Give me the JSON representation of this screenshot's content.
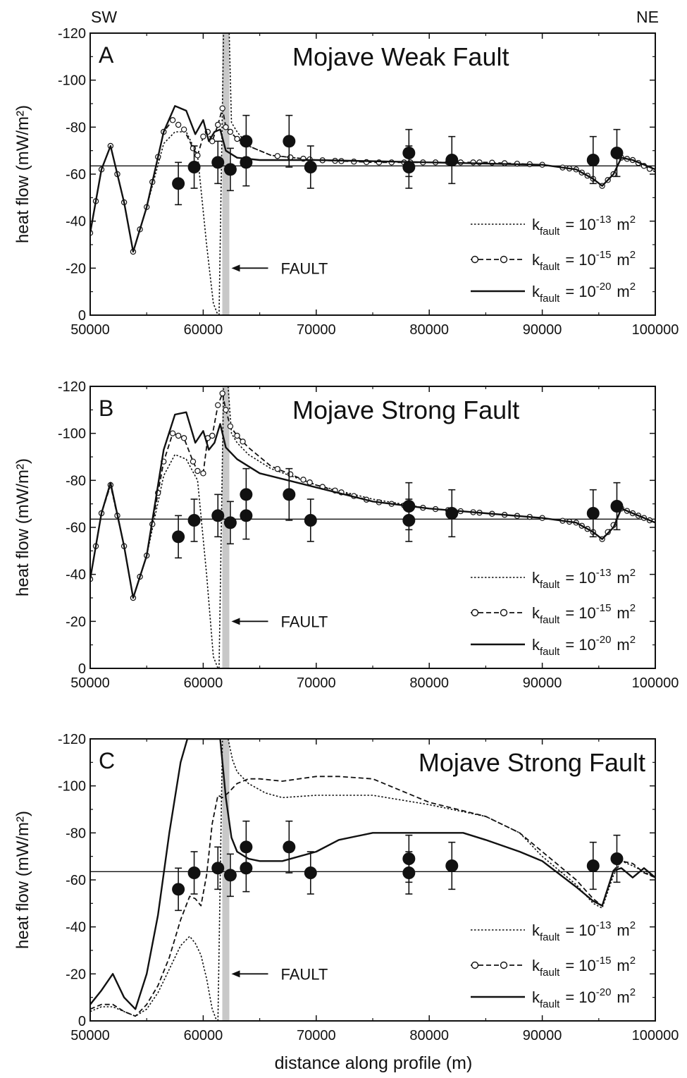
{
  "figure": {
    "left_label": "SW",
    "right_label": "NE",
    "xlabel": "distance along profile (m)"
  },
  "chart_data": [
    {
      "type": "line",
      "panel": "A",
      "title": "Mojave Weak Fault",
      "ylabel": "heat flow (mW/m²)",
      "xlim": [
        50000,
        100000
      ],
      "ylim": [
        0,
        -120
      ],
      "xticks": [
        "50000",
        "60000",
        "70000",
        "80000",
        "90000",
        "100000"
      ],
      "yticks": [
        "0",
        "-20",
        "-40",
        "-60",
        "-80",
        "-100",
        "-120"
      ],
      "fault_label": "FAULT",
      "fault_x": 62000,
      "reference_line": -63.5,
      "legend": [
        "k_fault = 10^-13 m^2",
        "k_fault = 10^-15 m^2",
        "k_fault = 10^-20 m^2"
      ],
      "series": [
        {
          "name": "k_fault = 10^-13 m^2",
          "style": "dotted",
          "x": [
            50000,
            51000,
            51800,
            53000,
            53800,
            55000,
            56500,
            57500,
            58500,
            59500,
            60300,
            60900,
            61300
          ],
          "y": [
            -35,
            -62,
            -72,
            -48,
            -27,
            -46,
            -73,
            -78,
            -78,
            -68,
            -30,
            -5,
            0
          ]
        },
        {
          "name": "k_fault = 10^-13 m^2 (fault zone)",
          "style": "dotted",
          "x": [
            61400,
            61600,
            61800
          ],
          "y": [
            0,
            -60,
            -120
          ]
        },
        {
          "name": "k_fault = 10^-13 m^2 (NE)",
          "style": "dotted",
          "x": [
            62300,
            62500,
            63000,
            64000,
            66000,
            70000,
            80000,
            90000,
            93000,
            94500,
            95300,
            96300,
            97000,
            98000,
            100000
          ],
          "y": [
            -120,
            -82,
            -78,
            -72,
            -68,
            -66,
            -65,
            -64,
            -62,
            -58,
            -55,
            -60,
            -67,
            -66,
            -61
          ]
        },
        {
          "name": "k_fault = 10^-15 m^2",
          "style": "dashed",
          "x": [
            50000,
            51000,
            51800,
            53000,
            53800,
            55000,
            56500,
            57300,
            58300,
            59100,
            59500,
            60000,
            60400,
            60800,
            61300,
            61700,
            62000,
            62400,
            63000,
            64000,
            66000,
            70000,
            75000,
            80000,
            85000,
            90000,
            93000,
            94500,
            95300,
            96300,
            97000,
            98000,
            100000
          ],
          "y": [
            -35,
            -62,
            -72,
            -48,
            -27,
            -46,
            -78,
            -83,
            -79,
            -71,
            -68,
            -76,
            -78,
            -74,
            -81,
            -88,
            -80,
            -78,
            -75,
            -72,
            -68,
            -66,
            -65,
            -65,
            -65,
            -64,
            -62,
            -58,
            -55,
            -60,
            -67,
            -66,
            -61
          ],
          "markers": true
        },
        {
          "name": "k_fault = 10^-20 m^2",
          "style": "solid",
          "x": [
            50000,
            51000,
            51800,
            53000,
            53800,
            55000,
            56500,
            57500,
            58500,
            59300,
            60000,
            60500,
            61000,
            61500,
            62000,
            63000,
            65000,
            70000,
            80000,
            90000,
            93000,
            94500,
            95300,
            96300,
            97000,
            98000,
            100000
          ],
          "y": [
            -35,
            -62,
            -72,
            -48,
            -27,
            -46,
            -78,
            -89,
            -87,
            -77,
            -83,
            -74,
            -78,
            -79,
            -70,
            -67,
            -66,
            -66,
            -65,
            -64,
            -62,
            -58,
            -55,
            -60,
            -67,
            -66,
            -62
          ]
        }
      ],
      "measurements": [
        {
          "x": 57800,
          "y": -56,
          "err": 9
        },
        {
          "x": 59200,
          "y": -63,
          "err": 9
        },
        {
          "x": 61300,
          "y": -65,
          "err": 9
        },
        {
          "x": 62400,
          "y": -62,
          "err": 9
        },
        {
          "x": 63800,
          "y": -65,
          "err": 10
        },
        {
          "x": 63800,
          "y": -74,
          "err": 11
        },
        {
          "x": 67600,
          "y": -74,
          "err": 11
        },
        {
          "x": 69500,
          "y": -63,
          "err": 9
        },
        {
          "x": 78200,
          "y": -69,
          "err": 10
        },
        {
          "x": 78200,
          "y": -63,
          "err": 9
        },
        {
          "x": 82000,
          "y": -66,
          "err": 10
        },
        {
          "x": 94500,
          "y": -66,
          "err": 10
        },
        {
          "x": 96600,
          "y": -69,
          "err": 10
        }
      ]
    },
    {
      "type": "line",
      "panel": "B",
      "title": "Mojave Strong Fault",
      "ylabel": "heat flow (mW/m²)",
      "xlim": [
        50000,
        100000
      ],
      "ylim": [
        0,
        -120
      ],
      "xticks": [
        "50000",
        "60000",
        "70000",
        "80000",
        "90000",
        "100000"
      ],
      "yticks": [
        "0",
        "-20",
        "-40",
        "-60",
        "-80",
        "-100",
        "-120"
      ],
      "fault_label": "FAULT",
      "fault_x": 62000,
      "reference_line": -63.5,
      "legend": [
        "k_fault = 10^-13 m^2",
        "k_fault = 10^-15 m^2",
        "k_fault = 10^-20 m^2"
      ],
      "series": [
        {
          "name": "k_fault = 10^-13 m^2",
          "style": "dotted",
          "x": [
            50000,
            51000,
            51800,
            53000,
            53800,
            55000,
            56500,
            57500,
            58500,
            59500,
            60300,
            60900,
            61300
          ],
          "y": [
            -38,
            -66,
            -78,
            -52,
            -30,
            -48,
            -82,
            -91,
            -89,
            -80,
            -40,
            -5,
            0
          ]
        },
        {
          "name": "k_fault = 10^-13 m^2 (fault zone)",
          "style": "dotted",
          "x": [
            61400,
            61600,
            61800
          ],
          "y": [
            0,
            -60,
            -120
          ]
        },
        {
          "name": "k_fault = 10^-13 m^2 (NE)",
          "style": "dotted",
          "x": [
            62200,
            62500,
            63000,
            64000,
            66000,
            70000,
            75000,
            80000,
            85000,
            90000,
            93000,
            94500,
            95300,
            96300,
            97000,
            98000,
            100000
          ],
          "y": [
            -120,
            -100,
            -96,
            -91,
            -85,
            -78,
            -72,
            -68,
            -66,
            -64,
            -62,
            -58,
            -55,
            -60,
            -68,
            -66,
            -62
          ]
        },
        {
          "name": "k_fault = 10^-15 m^2",
          "style": "dashed",
          "x": [
            50000,
            51000,
            51800,
            53000,
            53800,
            55000,
            56500,
            57300,
            58300,
            59100,
            59500,
            60000,
            60400,
            60800,
            61300,
            61700,
            62000,
            62400,
            63000,
            64000,
            66000,
            70000,
            75000,
            80000,
            85000,
            90000,
            93000,
            94500,
            95300,
            96300,
            97000,
            98000,
            100000
          ],
          "y": [
            -38,
            -66,
            -78,
            -52,
            -30,
            -48,
            -88,
            -100,
            -98,
            -88,
            -84,
            -83,
            -98,
            -99,
            -112,
            -117,
            -110,
            -103,
            -99,
            -94,
            -86,
            -78,
            -71,
            -68,
            -66,
            -64,
            -62,
            -58,
            -55,
            -61,
            -68,
            -66,
            -62
          ],
          "markers": true
        },
        {
          "name": "k_fault = 10^-20 m^2",
          "style": "solid",
          "x": [
            50000,
            51000,
            51800,
            53000,
            53800,
            55000,
            56500,
            57500,
            58500,
            59300,
            60000,
            60500,
            61000,
            61500,
            62000,
            63000,
            65000,
            70000,
            75000,
            80000,
            85000,
            90000,
            93000,
            94500,
            95300,
            96300,
            97000,
            98000,
            100000
          ],
          "y": [
            -38,
            -66,
            -79,
            -52,
            -30,
            -48,
            -93,
            -108,
            -109,
            -96,
            -101,
            -93,
            -96,
            -104,
            -94,
            -89,
            -83,
            -77,
            -71,
            -68,
            -66,
            -64,
            -62,
            -58,
            -55,
            -60,
            -68,
            -66,
            -62
          ]
        }
      ],
      "measurements": [
        {
          "x": 57800,
          "y": -56,
          "err": 9
        },
        {
          "x": 59200,
          "y": -63,
          "err": 9
        },
        {
          "x": 61300,
          "y": -65,
          "err": 9
        },
        {
          "x": 62400,
          "y": -62,
          "err": 9
        },
        {
          "x": 63800,
          "y": -65,
          "err": 10
        },
        {
          "x": 63800,
          "y": -74,
          "err": 11
        },
        {
          "x": 67600,
          "y": -74,
          "err": 11
        },
        {
          "x": 69500,
          "y": -63,
          "err": 9
        },
        {
          "x": 78200,
          "y": -69,
          "err": 10
        },
        {
          "x": 78200,
          "y": -63,
          "err": 9
        },
        {
          "x": 82000,
          "y": -66,
          "err": 10
        },
        {
          "x": 94500,
          "y": -66,
          "err": 10
        },
        {
          "x": 96600,
          "y": -69,
          "err": 10
        }
      ]
    },
    {
      "type": "line",
      "panel": "C",
      "title": "Mojave Strong Fault",
      "ylabel": "heat flow (mW/m²)",
      "xlim": [
        50000,
        100000
      ],
      "ylim": [
        0,
        -120
      ],
      "xticks": [
        "50000",
        "60000",
        "70000",
        "80000",
        "90000",
        "100000"
      ],
      "yticks": [
        "0",
        "-20",
        "-40",
        "-60",
        "-80",
        "-100",
        "-120"
      ],
      "fault_label": "FAULT",
      "fault_x": 62000,
      "reference_line": -63.5,
      "legend": [
        "k_fault = 10^-13 m^2",
        "k_fault = 10^-15 m^2",
        "k_fault = 10^-20 m^2"
      ],
      "series": [
        {
          "name": "k_fault = 10^-13 m^2",
          "style": "dotted",
          "x": [
            50000,
            51000,
            52000,
            53000,
            54000,
            55000,
            56000,
            57000,
            58000,
            58800,
            59300,
            59800,
            60300,
            60800,
            61200
          ],
          "y": [
            -4,
            -6,
            -6,
            -4,
            -2,
            -5,
            -12,
            -22,
            -32,
            -36,
            -33,
            -28,
            -18,
            -5,
            0
          ]
        },
        {
          "name": "k_fault = 10^-13 m^2 (fault zone)",
          "style": "dotted",
          "x": [
            61300,
            61500,
            61700
          ],
          "y": [
            0,
            -60,
            -120
          ]
        },
        {
          "name": "k_fault = 10^-13 m^2 (NE)",
          "style": "dotted",
          "x": [
            62200,
            62600,
            63000,
            64000,
            65500,
            67000,
            70000,
            75000,
            80000,
            85000,
            88000,
            90000,
            93000,
            94500,
            95300,
            96300,
            97000,
            98000,
            100000
          ],
          "y": [
            -120,
            -111,
            -106,
            -101,
            -97,
            -95,
            -96,
            -96,
            -92,
            -87,
            -80,
            -70,
            -58,
            -50,
            -48,
            -62,
            -68,
            -66,
            -61
          ]
        },
        {
          "name": "k_fault = 10^-15 m^2",
          "style": "dashed",
          "x": [
            50000,
            51000,
            52000,
            53000,
            54000,
            55000,
            56000,
            57000,
            58000,
            58800,
            59300,
            59800,
            60300,
            60800,
            61300,
            61700,
            62200,
            63000,
            64000,
            65000,
            67000,
            70000,
            72000,
            75000,
            78000,
            80000,
            85000,
            88000,
            90000,
            93000,
            94500,
            95300,
            96300,
            97000,
            98000,
            99000,
            100000
          ],
          "y": [
            -5,
            -7,
            -7,
            -4,
            -2,
            -7,
            -15,
            -27,
            -43,
            -53,
            -52,
            -49,
            -62,
            -84,
            -96,
            -95,
            -97,
            -101,
            -103,
            -103,
            -102,
            -104,
            -104,
            -103,
            -97,
            -93,
            -87,
            -80,
            -72,
            -60,
            -52,
            -49,
            -64,
            -68,
            -67,
            -63,
            -61
          ]
        },
        {
          "name": "k_fault = 10^-20 m^2",
          "style": "solid",
          "x": [
            50000,
            51000,
            52000,
            53000,
            54000,
            55000,
            56000,
            57000,
            58000,
            58600,
            61500,
            62000,
            62500,
            63000,
            64000,
            65000,
            67000,
            70000,
            72000,
            75000,
            78000,
            80000,
            83000,
            85000,
            88000,
            90000,
            93000,
            94500,
            95300,
            96300,
            97000,
            98000,
            99000,
            100000
          ],
          "y": [
            -7,
            -13,
            -20,
            -10,
            -5,
            -20,
            -45,
            -80,
            -110,
            -120,
            -120,
            -95,
            -78,
            -72,
            -69,
            -68,
            -68,
            -72,
            -77,
            -80,
            -80,
            -80,
            -80,
            -77,
            -72,
            -68,
            -57,
            -51,
            -49,
            -64,
            -65,
            -61,
            -65,
            -61
          ]
        }
      ],
      "measurements": [
        {
          "x": 57800,
          "y": -56,
          "err": 9
        },
        {
          "x": 59200,
          "y": -63,
          "err": 9
        },
        {
          "x": 61300,
          "y": -65,
          "err": 9
        },
        {
          "x": 62400,
          "y": -62,
          "err": 9
        },
        {
          "x": 63800,
          "y": -65,
          "err": 10
        },
        {
          "x": 63800,
          "y": -74,
          "err": 11
        },
        {
          "x": 67600,
          "y": -74,
          "err": 11
        },
        {
          "x": 69500,
          "y": -63,
          "err": 9
        },
        {
          "x": 78200,
          "y": -69,
          "err": 10
        },
        {
          "x": 78200,
          "y": -63,
          "err": 9
        },
        {
          "x": 82000,
          "y": -66,
          "err": 10
        },
        {
          "x": 94500,
          "y": -66,
          "err": 10
        },
        {
          "x": 96600,
          "y": -69,
          "err": 10
        }
      ]
    }
  ]
}
